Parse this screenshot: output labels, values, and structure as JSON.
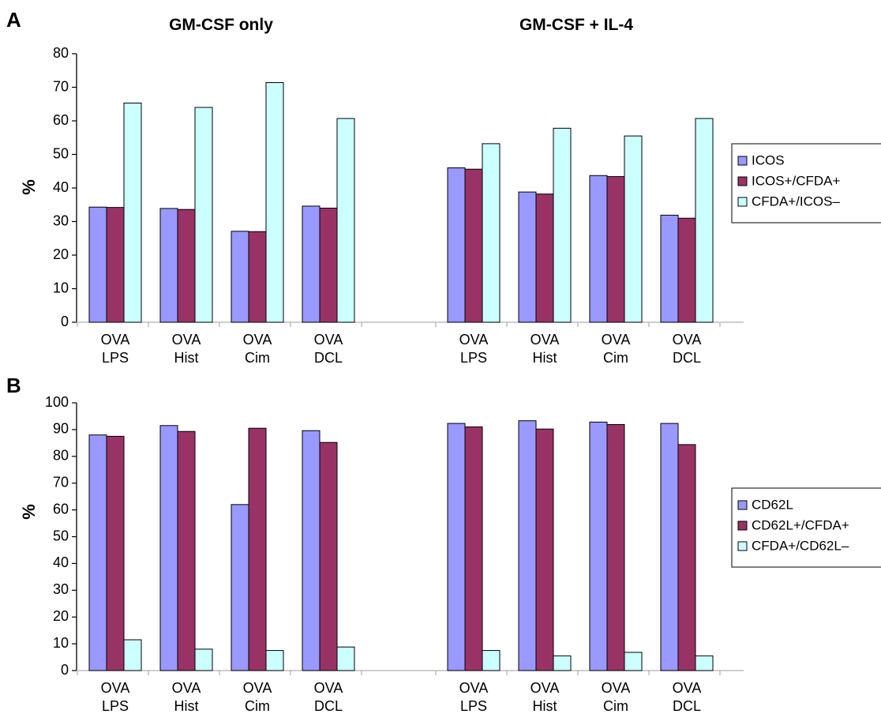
{
  "group_titles": [
    "GM-CSF only",
    "GM-CSF + IL-4"
  ],
  "chart_data": [
    {
      "panel": "A",
      "type": "bar",
      "ylabel": "%",
      "ylim": [
        0,
        80
      ],
      "yticks": [
        0,
        10,
        20,
        30,
        40,
        50,
        60,
        70,
        80
      ],
      "categories": [
        {
          "line1": "OVA",
          "line2": "LPS"
        },
        {
          "line1": "OVA",
          "line2": "Hist"
        },
        {
          "line1": "OVA",
          "line2": "Cim"
        },
        {
          "line1": "OVA",
          "line2": "DCL"
        },
        {
          "line1": "OVA",
          "line2": "LPS"
        },
        {
          "line1": "OVA",
          "line2": "Hist"
        },
        {
          "line1": "OVA",
          "line2": "Cim"
        },
        {
          "line1": "OVA",
          "line2": "DCL"
        }
      ],
      "series": [
        {
          "name": "ICOS",
          "color": "#9999ff",
          "values": [
            34.3,
            33.9,
            27.1,
            34.6,
            46,
            38.8,
            43.7,
            31.9
          ]
        },
        {
          "name": "ICOS+/CFDA+",
          "color": "#993366",
          "values": [
            34.2,
            33.6,
            27.0,
            34.0,
            45.6,
            38.2,
            43.4,
            31.0
          ]
        },
        {
          "name": "CFDA+/ICOS–",
          "color": "#ccffff",
          "values": [
            65.3,
            64.0,
            71.4,
            60.7,
            53.2,
            57.8,
            55.5,
            60.7
          ]
        }
      ],
      "legend": "right",
      "grid": false
    },
    {
      "panel": "B",
      "type": "bar",
      "ylabel": "%",
      "ylim": [
        0,
        100
      ],
      "yticks": [
        0,
        10,
        20,
        30,
        40,
        50,
        60,
        70,
        80,
        90,
        100
      ],
      "categories": [
        {
          "line1": "OVA",
          "line2": "LPS"
        },
        {
          "line1": "OVA",
          "line2": "Hist"
        },
        {
          "line1": "OVA",
          "line2": "Cim"
        },
        {
          "line1": "OVA",
          "line2": "DCL"
        },
        {
          "line1": "OVA",
          "line2": "LPS"
        },
        {
          "line1": "OVA",
          "line2": "Hist"
        },
        {
          "line1": "OVA",
          "line2": "Cim"
        },
        {
          "line1": "OVA",
          "line2": "DCL"
        }
      ],
      "series": [
        {
          "name": "CD62L",
          "color": "#9999ff",
          "values": [
            88,
            91.5,
            62,
            89.6,
            92.3,
            93.3,
            92.8,
            92.3
          ]
        },
        {
          "name": "CD62L+/CFDA+",
          "color": "#993366",
          "values": [
            87.5,
            89.3,
            90.5,
            85.2,
            91,
            90.2,
            91.9,
            84.4
          ]
        },
        {
          "name": "CFDA+/CD62L–",
          "color": "#ccffff",
          "values": [
            11.5,
            8,
            7.5,
            8.8,
            7.5,
            5.5,
            6.8,
            5.5
          ]
        }
      ],
      "legend": "right",
      "grid": false
    }
  ]
}
